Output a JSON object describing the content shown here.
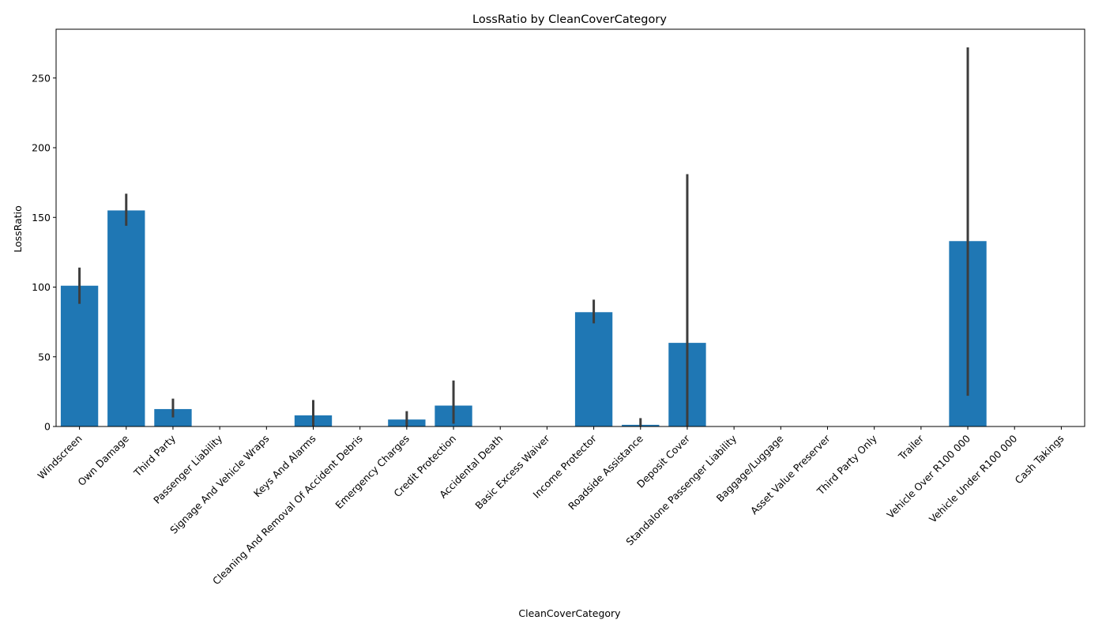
{
  "chart_data": {
    "type": "bar",
    "title": "LossRatio by CleanCoverCategory",
    "xlabel": "CleanCoverCategory",
    "ylabel": "LossRatio",
    "ylim": [
      0,
      285
    ],
    "yticks": [
      0,
      50,
      100,
      150,
      200,
      250
    ],
    "bar_color": "#1f77b4",
    "errorbar_color": "#3d3d3d",
    "grid": false,
    "legend": "none",
    "categories": [
      "Windscreen",
      "Own Damage",
      "Third Party",
      "Passenger Liability",
      "Signage And Vehicle Wraps",
      "Keys And Alarms",
      "Cleaning And Removal Of Accident Debris",
      "Emergency Charges",
      "Credit Protection",
      "Accidental Death",
      "Basic Excess Waiver",
      "Income Protector",
      "Roadside Assistance",
      "Deposit Cover",
      "Standalone Passenger Liability",
      "Baggage/Luggage",
      "Asset Value Preserver",
      "Third Party Only",
      "Trailer",
      "Vehicle Over R100 000",
      "Vehicle Under R100 000",
      "Cash Takings"
    ],
    "values": [
      101,
      155,
      12.5,
      0,
      0,
      8,
      0,
      5,
      15,
      0,
      0,
      82,
      1.2,
      60,
      0,
      0,
      0,
      0,
      0,
      133,
      0,
      0
    ],
    "ci_low": [
      88,
      144,
      6.5,
      0,
      0,
      0,
      0,
      0,
      2,
      0,
      0,
      74,
      0,
      0,
      0,
      0,
      0,
      0,
      0,
      22,
      0,
      0
    ],
    "ci_high": [
      114,
      167,
      20,
      0,
      0,
      19,
      0,
      11,
      33,
      0,
      0,
      91,
      6,
      181,
      0,
      0,
      0,
      0,
      0,
      272,
      0,
      0
    ]
  }
}
